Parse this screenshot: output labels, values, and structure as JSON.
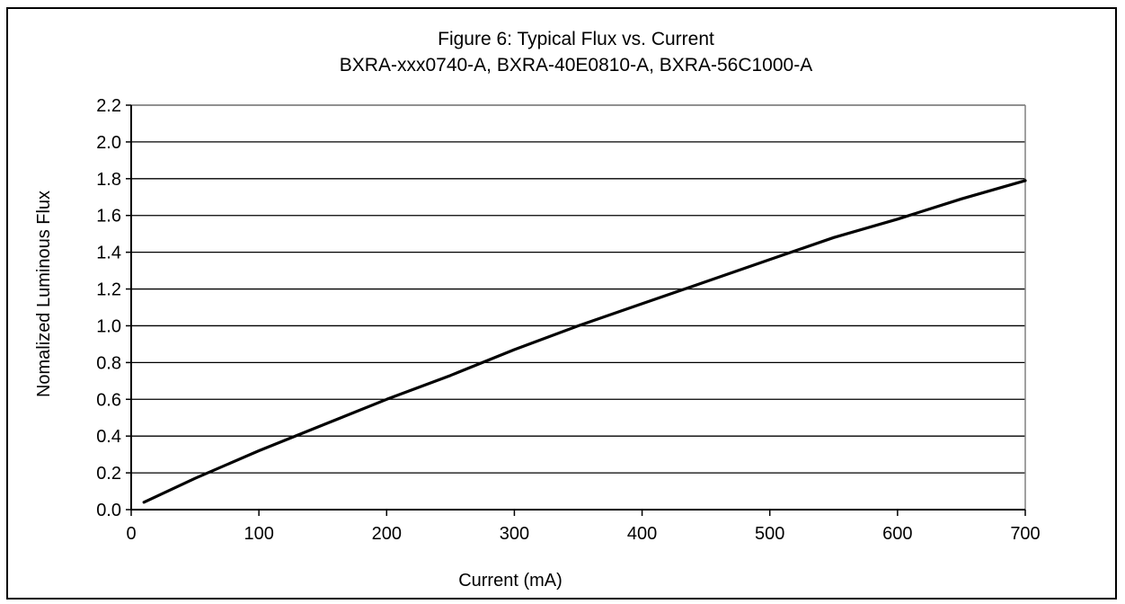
{
  "chart_data": {
    "type": "line",
    "title": "Figure 6:  Typical Flux vs. Current",
    "subtitle": "BXRA-xxx0740-A, BXRA-40E0810-A, BXRA-56C1000-A",
    "xlabel": "Current  (mA)",
    "ylabel": "Nomalized Luminous Flux",
    "xlim": [
      0,
      700
    ],
    "ylim": [
      0,
      2.2
    ],
    "xticks": [
      0,
      100,
      200,
      300,
      400,
      500,
      600,
      700
    ],
    "xtick_labels": [
      "0",
      "100",
      "200",
      "300",
      "400",
      "500",
      "600",
      "700"
    ],
    "yticks": [
      0,
      0.2,
      0.4,
      0.6,
      0.8,
      1.0,
      1.2,
      1.4,
      1.6,
      1.8,
      2.0,
      2.2
    ],
    "ytick_labels": [
      "0.0",
      "0.2",
      "0.4",
      "0.6",
      "0.8",
      "1.0",
      "1.2",
      "1.4",
      "1.6",
      "1.8",
      "2.0",
      "2.2"
    ],
    "grid": "horizontal",
    "legend": "none",
    "series": [
      {
        "x": [
          10,
          50,
          100,
          150,
          200,
          250,
          300,
          350,
          400,
          450,
          500,
          550,
          600,
          650,
          700
        ],
        "y": [
          0.04,
          0.17,
          0.32,
          0.46,
          0.6,
          0.73,
          0.87,
          1.0,
          1.12,
          1.24,
          1.36,
          1.48,
          1.58,
          1.69,
          1.79
        ]
      }
    ],
    "colors": {
      "line": "#000000",
      "grid": "#000000",
      "plot_border": "#808080"
    }
  }
}
